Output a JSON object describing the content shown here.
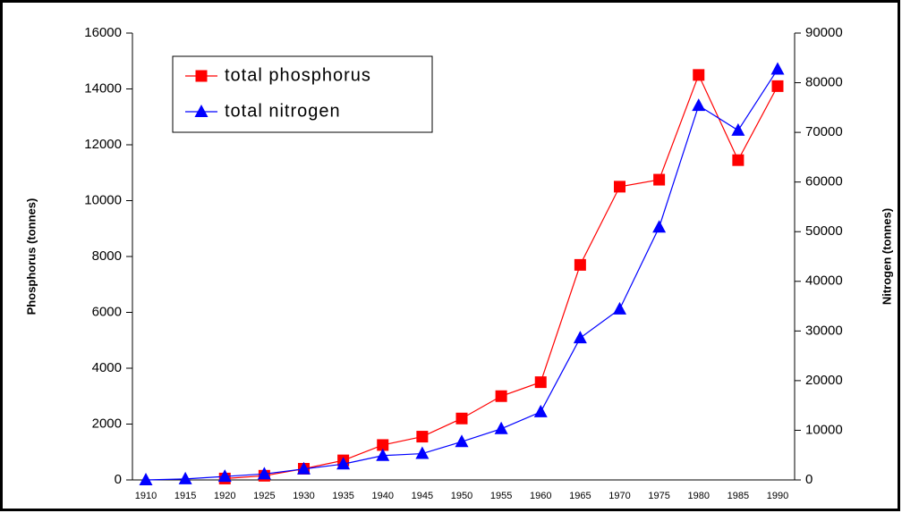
{
  "chart_data": {
    "type": "line",
    "categories": [
      "1910",
      "1915",
      "1920",
      "1925",
      "1930",
      "1935",
      "1940",
      "1945",
      "1950",
      "1955",
      "1960",
      "1965",
      "1970",
      "1975",
      "1980",
      "1985",
      "1990"
    ],
    "y_label": "Phosphorus (tonnes)",
    "y2_label": "Nitrogen (tonnes)",
    "ylim": [
      0,
      16000
    ],
    "yticks": [
      0,
      2000,
      4000,
      6000,
      8000,
      10000,
      12000,
      14000,
      16000
    ],
    "y2lim": [
      0,
      90000
    ],
    "y2ticks": [
      0,
      10000,
      20000,
      30000,
      40000,
      50000,
      60000,
      70000,
      80000,
      90000
    ],
    "legend": "upper left",
    "series": [
      {
        "name": "total phosphorus",
        "color": "#ff0000",
        "marker": "square",
        "values": [
          null,
          null,
          50,
          150,
          400,
          700,
          1250,
          1550,
          2200,
          3000,
          3500,
          7700,
          10500,
          10750,
          14500,
          11450,
          14100
        ]
      },
      {
        "name": "total nitrogen",
        "color": "#0000ff",
        "marker": "triangle",
        "axis": "y2",
        "values": [
          0,
          200,
          700,
          1200,
          2200,
          3200,
          4900,
          5300,
          7700,
          10300,
          13700,
          28600,
          34400,
          50900,
          75400,
          70400,
          82700
        ]
      }
    ]
  }
}
